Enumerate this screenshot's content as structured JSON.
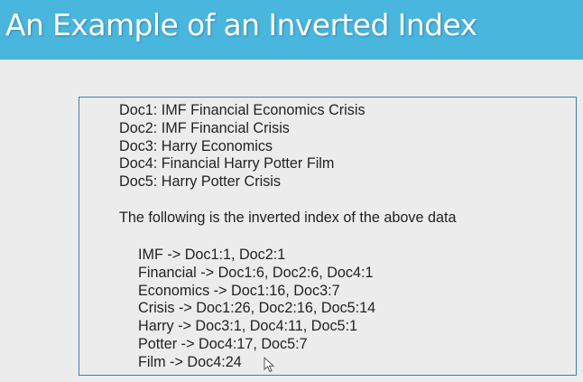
{
  "slide": {
    "title": "An Example of an Inverted Index"
  },
  "documents": [
    "Doc1: IMF Financial Economics Crisis",
    "Doc2: IMF Financial Crisis",
    "Doc3: Harry Economics",
    "Doc4: Financial Harry Potter Film",
    "Doc5: Harry Potter Crisis"
  ],
  "intro_text": "The following is the inverted index of the above data",
  "index_entries": [
    "IMF -> Doc1:1, Doc2:1",
    "Financial -> Doc1:6, Doc2:6, Doc4:1",
    "Economics -> Doc1:16, Doc3:7",
    "Crisis -> Doc1:26, Doc2:16, Doc5:14",
    "Harry -> Doc3:1, Doc4:11, Doc5:1",
    "Potter -> Doc4:17, Doc5:7",
    "Film -> Doc4:24"
  ],
  "colors": {
    "title_bar": "#49b6de",
    "background": "#ececec",
    "box_border": "#3c7fb3",
    "text": "#222222"
  },
  "icons": {
    "cursor": "mouse-pointer-icon"
  }
}
